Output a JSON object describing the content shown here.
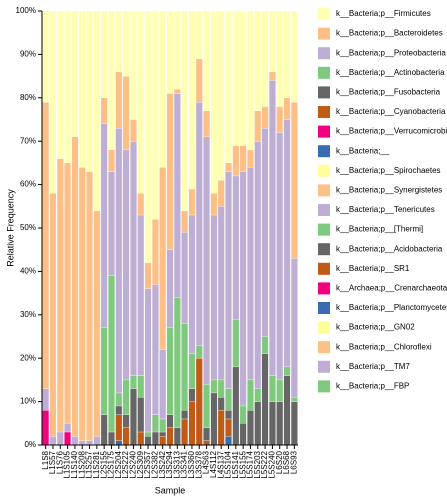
{
  "chart_data": {
    "type": "stacked-bar",
    "xlabel": "Sample",
    "ylabel": "Relative Frequency",
    "categories": [
      "L1S8",
      "L1S57",
      "L1S76",
      "L1S105",
      "L1S140",
      "L1S208",
      "L1S257",
      "L1S281",
      "L2S155",
      "L2S175",
      "L2S204",
      "L2S222",
      "L2S240",
      "L2S309",
      "L2S357",
      "L2S382",
      "L3S242",
      "L3S294",
      "L3S313",
      "L3S341",
      "L3S360",
      "L3S378",
      "L4S63",
      "L4S112",
      "L4S137",
      "L5S104",
      "L5S141",
      "L5S155",
      "L5S174",
      "L5S203",
      "L5S222",
      "L5S240",
      "L6S20",
      "L6S68",
      "L6S93"
    ],
    "ylim": [
      0,
      100
    ],
    "yticks": [
      {
        "value": 0,
        "label": "0%"
      },
      {
        "value": 10,
        "label": "10%"
      },
      {
        "value": 20,
        "label": "20%"
      },
      {
        "value": 30,
        "label": "30%"
      },
      {
        "value": 40,
        "label": "40%"
      },
      {
        "value": 50,
        "label": "50%"
      },
      {
        "value": 60,
        "label": "60%"
      },
      {
        "value": 70,
        "label": "70%"
      },
      {
        "value": 80,
        "label": "80%"
      },
      {
        "value": 90,
        "label": "90%"
      },
      {
        "value": 100,
        "label": "100%"
      }
    ],
    "legend": "right",
    "series": [
      {
        "name": "k__Bacteria;p__Firmicutes",
        "color": "#ffffb3",
        "values": [
          21,
          42,
          34,
          35,
          29,
          36,
          37,
          46,
          20,
          32,
          14,
          15,
          25,
          42,
          58,
          48,
          36,
          19,
          18,
          46,
          41,
          11,
          23,
          42,
          39,
          35,
          31,
          31,
          32,
          23,
          22,
          14,
          22,
          20,
          21
        ]
      },
      {
        "name": "k__Bacteria;p__Bacteroidetes",
        "color": "#fdbf86",
        "values": [
          66,
          56,
          63,
          60,
          69,
          63,
          62,
          52,
          6,
          5,
          13,
          17,
          5,
          5,
          6,
          15,
          42,
          36,
          1,
          5,
          6,
          10,
          6,
          5,
          6,
          2,
          7,
          6,
          4,
          7,
          5,
          2,
          6,
          5,
          36
        ]
      },
      {
        "name": "k__Bacteria;p__Proteobacteria",
        "color": "#beaed4",
        "values": [
          5,
          2,
          3,
          2,
          2,
          1,
          1,
          2,
          47,
          24,
          61,
          53,
          54,
          37,
          33,
          30,
          16,
          18,
          47,
          21,
          32,
          56,
          57,
          38,
          40,
          50,
          33,
          54,
          49,
          57,
          48,
          68,
          57,
          57,
          32
        ]
      },
      {
        "name": "k__Bacteria;p__Actinobacteria",
        "color": "#7fc97f",
        "values": [
          0,
          0,
          0,
          0,
          0,
          0,
          0,
          0,
          20,
          36,
          3,
          8,
          3,
          5,
          1,
          4,
          3,
          20,
          30,
          20,
          8,
          3,
          10,
          3,
          4,
          5,
          11,
          4,
          7,
          3,
          4,
          6,
          5,
          2,
          1
        ]
      },
      {
        "name": "k__Bacteria;p__Fusobacteria",
        "color": "#666666",
        "values": [
          0,
          0,
          0,
          0,
          0,
          0,
          0,
          0,
          7,
          3,
          2,
          3,
          13,
          8,
          2,
          3,
          1,
          3,
          4,
          2,
          3,
          0,
          3,
          12,
          3,
          2,
          18,
          5,
          8,
          10,
          21,
          10,
          10,
          16,
          10
        ]
      },
      {
        "name": "k__Bacteria;p__Cyanobacteria",
        "color": "#bf5b17",
        "values": [
          0,
          0,
          0,
          0,
          0,
          0,
          0,
          0,
          0,
          0,
          6,
          4,
          0,
          3,
          0,
          0,
          2,
          4,
          0,
          6,
          10,
          20,
          1,
          0,
          8,
          4,
          0,
          0,
          0,
          0,
          0,
          0,
          0,
          0,
          0
        ]
      },
      {
        "name": "k__Bacteria;p__Verrucomicrobia",
        "color": "#f0027f",
        "values": [
          8,
          0,
          0,
          3,
          0,
          0,
          0,
          0,
          0,
          0,
          0,
          0,
          0,
          0,
          0,
          0,
          0,
          0,
          0,
          0,
          0,
          0,
          0,
          0,
          0,
          0,
          0,
          0,
          0,
          0,
          0,
          0,
          0,
          0,
          0
        ]
      },
      {
        "name": "k__Bacteria;__",
        "color": "#386cb0",
        "values": [
          0,
          0,
          0,
          0,
          0,
          0,
          0,
          0,
          0,
          0,
          1,
          0,
          0,
          0,
          0,
          0,
          0,
          0,
          0,
          0,
          0,
          0,
          0,
          0,
          0,
          2,
          0,
          0,
          0,
          0,
          0,
          0,
          0,
          0,
          0
        ]
      },
      {
        "name": "k__Bacteria;p__Spirochaetes",
        "color": "#ffff99",
        "values": [
          0,
          0,
          0,
          0,
          0,
          0,
          0,
          0,
          0,
          0,
          0,
          0,
          0,
          0,
          0,
          0,
          0,
          0,
          0,
          0,
          0,
          0,
          0,
          0,
          0,
          0,
          0,
          0,
          0,
          0,
          0,
          0,
          0,
          0,
          0
        ]
      },
      {
        "name": "k__Bacteria;p__Synergistetes",
        "color": "#fdc086",
        "values": [
          0,
          0,
          0,
          0,
          0,
          0,
          0,
          0,
          0,
          0,
          0,
          0,
          0,
          0,
          0,
          0,
          0,
          0,
          0,
          0,
          0,
          0,
          0,
          0,
          0,
          0,
          0,
          0,
          0,
          0,
          0,
          0,
          0,
          0,
          0
        ]
      },
      {
        "name": "k__Bacteria;p__Tenericutes",
        "color": "#beaed4",
        "values": [
          0,
          0,
          0,
          0,
          0,
          0,
          0,
          0,
          0,
          0,
          0,
          0,
          0,
          0,
          0,
          0,
          0,
          0,
          0,
          0,
          0,
          0,
          0,
          0,
          0,
          0,
          0,
          0,
          0,
          0,
          0,
          0,
          0,
          0,
          0
        ]
      },
      {
        "name": "k__Bacteria;p__[Thermi]",
        "color": "#7fc97f",
        "values": [
          0,
          0,
          0,
          0,
          0,
          0,
          0,
          0,
          0,
          0,
          0,
          0,
          0,
          0,
          0,
          0,
          0,
          0,
          0,
          0,
          0,
          0,
          0,
          0,
          0,
          0,
          0,
          0,
          0,
          0,
          0,
          0,
          0,
          0,
          0
        ]
      },
      {
        "name": "k__Bacteria;p__Acidobacteria",
        "color": "#666666",
        "values": [
          0,
          0,
          0,
          0,
          0,
          0,
          0,
          0,
          0,
          0,
          0,
          0,
          0,
          0,
          0,
          0,
          0,
          0,
          0,
          0,
          0,
          0,
          0,
          0,
          0,
          0,
          0,
          0,
          0,
          0,
          0,
          0,
          0,
          0,
          0
        ]
      },
      {
        "name": "k__Bacteria;p__SR1",
        "color": "#bf5b17",
        "values": [
          0,
          0,
          0,
          0,
          0,
          0,
          0,
          0,
          0,
          0,
          0,
          0,
          0,
          0,
          0,
          0,
          0,
          0,
          0,
          0,
          0,
          0,
          0,
          0,
          0,
          0,
          0,
          0,
          0,
          0,
          0,
          0,
          0,
          0,
          0
        ]
      },
      {
        "name": "k__Archaea;p__Crenarchaeota",
        "color": "#f0027f",
        "values": [
          0,
          0,
          0,
          0,
          0,
          0,
          0,
          0,
          0,
          0,
          0,
          0,
          0,
          0,
          0,
          0,
          0,
          0,
          0,
          0,
          0,
          0,
          0,
          0,
          0,
          0,
          0,
          0,
          0,
          0,
          0,
          0,
          0,
          0,
          0
        ]
      },
      {
        "name": "k__Bacteria;p__Planctomycetes",
        "color": "#386cb0",
        "values": [
          0,
          0,
          0,
          0,
          0,
          0,
          0,
          0,
          0,
          0,
          0,
          0,
          0,
          0,
          0,
          0,
          0,
          0,
          0,
          0,
          0,
          0,
          0,
          0,
          0,
          0,
          0,
          0,
          0,
          0,
          0,
          0,
          0,
          0,
          0
        ]
      },
      {
        "name": "k__Bacteria;p__GN02",
        "color": "#ffff99",
        "values": [
          0,
          0,
          0,
          0,
          0,
          0,
          0,
          0,
          0,
          0,
          0,
          0,
          0,
          0,
          0,
          0,
          0,
          0,
          0,
          0,
          0,
          0,
          0,
          0,
          0,
          0,
          0,
          0,
          0,
          0,
          0,
          0,
          0,
          0,
          0
        ]
      },
      {
        "name": "k__Bacteria;p__Chloroflexi",
        "color": "#fdc086",
        "values": [
          0,
          0,
          0,
          0,
          0,
          0,
          0,
          0,
          0,
          0,
          0,
          0,
          0,
          0,
          0,
          0,
          0,
          0,
          0,
          0,
          0,
          0,
          0,
          0,
          0,
          0,
          0,
          0,
          0,
          0,
          0,
          0,
          0,
          0,
          0
        ]
      },
      {
        "name": "k__Bacteria;p__TM7",
        "color": "#beaed4",
        "values": [
          0,
          0,
          0,
          0,
          0,
          0,
          0,
          0,
          0,
          0,
          0,
          0,
          0,
          0,
          0,
          0,
          0,
          0,
          0,
          0,
          0,
          0,
          0,
          0,
          0,
          0,
          0,
          0,
          0,
          0,
          0,
          0,
          0,
          0,
          0
        ]
      },
      {
        "name": "k__Bacteria;p__FBP",
        "color": "#7fc97f",
        "values": [
          0,
          0,
          0,
          0,
          0,
          0,
          0,
          0,
          0,
          0,
          0,
          0,
          0,
          0,
          0,
          0,
          0,
          0,
          0,
          0,
          0,
          0,
          0,
          0,
          0,
          0,
          0,
          0,
          0,
          0,
          0,
          0,
          0,
          0,
          0
        ]
      }
    ]
  }
}
